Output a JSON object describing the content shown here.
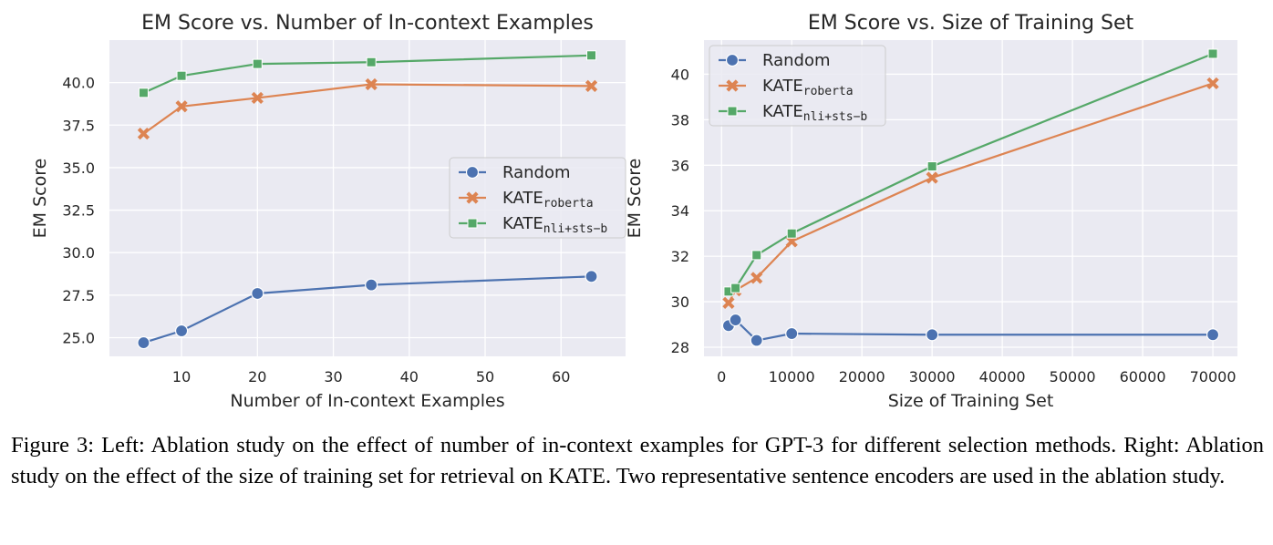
{
  "colors": {
    "panel_bg": "#EAEAF2",
    "grid": "#FFFFFF",
    "random": "#4C72B0",
    "kate_roberta": "#DD8452",
    "kate_nli": "#55A868"
  },
  "caption": "Figure 3: Left: Ablation study on the effect of number of in-context examples for GPT-3 for different selection methods. Right: Ablation study on the effect of the size of training set for retrieval on KATE. Two representative sentence encoders are used in the ablation study.",
  "chart_data": [
    {
      "type": "line",
      "title": "EM Score vs. Number of In-context Examples",
      "xlabel": "Number of In-context Examples",
      "ylabel": "EM Score",
      "xlim": [
        0.5,
        68.5
      ],
      "ylim": [
        23.9,
        42.5
      ],
      "xticks": [
        10,
        20,
        30,
        40,
        50,
        60
      ],
      "yticks": [
        25.0,
        27.5,
        30.0,
        32.5,
        35.0,
        37.5,
        40.0
      ],
      "ytick_labels": [
        "25.0",
        "27.5",
        "30.0",
        "32.5",
        "35.0",
        "37.5",
        "40.0"
      ],
      "grid": true,
      "legend_position": "center-right",
      "x": [
        5,
        10,
        20,
        35,
        64
      ],
      "series": [
        {
          "name": "Random",
          "label_main": "Random",
          "label_sub": "",
          "marker": "circle",
          "color_key": "random",
          "values": [
            24.7,
            25.4,
            27.6,
            28.1,
            28.6
          ]
        },
        {
          "name": "KATE roberta",
          "label_main": "KATE",
          "label_sub": "roberta",
          "marker": "x",
          "color_key": "kate_roberta",
          "values": [
            37.0,
            38.6,
            39.1,
            39.9,
            39.8
          ]
        },
        {
          "name": "KATE nli+sts-b",
          "label_main": "KATE",
          "label_sub": "nli+sts−b",
          "marker": "square",
          "color_key": "kate_nli",
          "values": [
            39.4,
            40.4,
            41.1,
            41.2,
            41.6
          ]
        }
      ]
    },
    {
      "type": "line",
      "title": "EM Score vs. Size of Training Set",
      "xlabel": "Size of Training Set",
      "ylabel": "EM Score",
      "xlim": [
        -2500,
        73500
      ],
      "ylim": [
        27.6,
        41.5
      ],
      "xticks": [
        0,
        10000,
        20000,
        30000,
        40000,
        50000,
        60000,
        70000
      ],
      "yticks": [
        28,
        30,
        32,
        34,
        36,
        38,
        40
      ],
      "ytick_labels": [
        "28",
        "30",
        "32",
        "34",
        "36",
        "38",
        "40"
      ],
      "grid": true,
      "legend_position": "upper-left",
      "x": [
        1000,
        2000,
        5000,
        10000,
        30000,
        70000
      ],
      "series": [
        {
          "name": "Random",
          "label_main": "Random",
          "label_sub": "",
          "marker": "circle",
          "color_key": "random",
          "values": [
            28.95,
            29.2,
            28.3,
            28.6,
            28.55,
            28.55
          ]
        },
        {
          "name": "KATE roberta",
          "label_main": "KATE",
          "label_sub": "roberta",
          "marker": "x",
          "color_key": "kate_roberta",
          "values": [
            29.95,
            30.5,
            31.05,
            32.65,
            35.45,
            39.6
          ]
        },
        {
          "name": "KATE nli+sts-b",
          "label_main": "KATE",
          "label_sub": "nli+sts−b",
          "marker": "square",
          "color_key": "kate_nli",
          "values": [
            30.45,
            30.6,
            32.05,
            33.0,
            35.95,
            40.9
          ]
        }
      ]
    }
  ]
}
